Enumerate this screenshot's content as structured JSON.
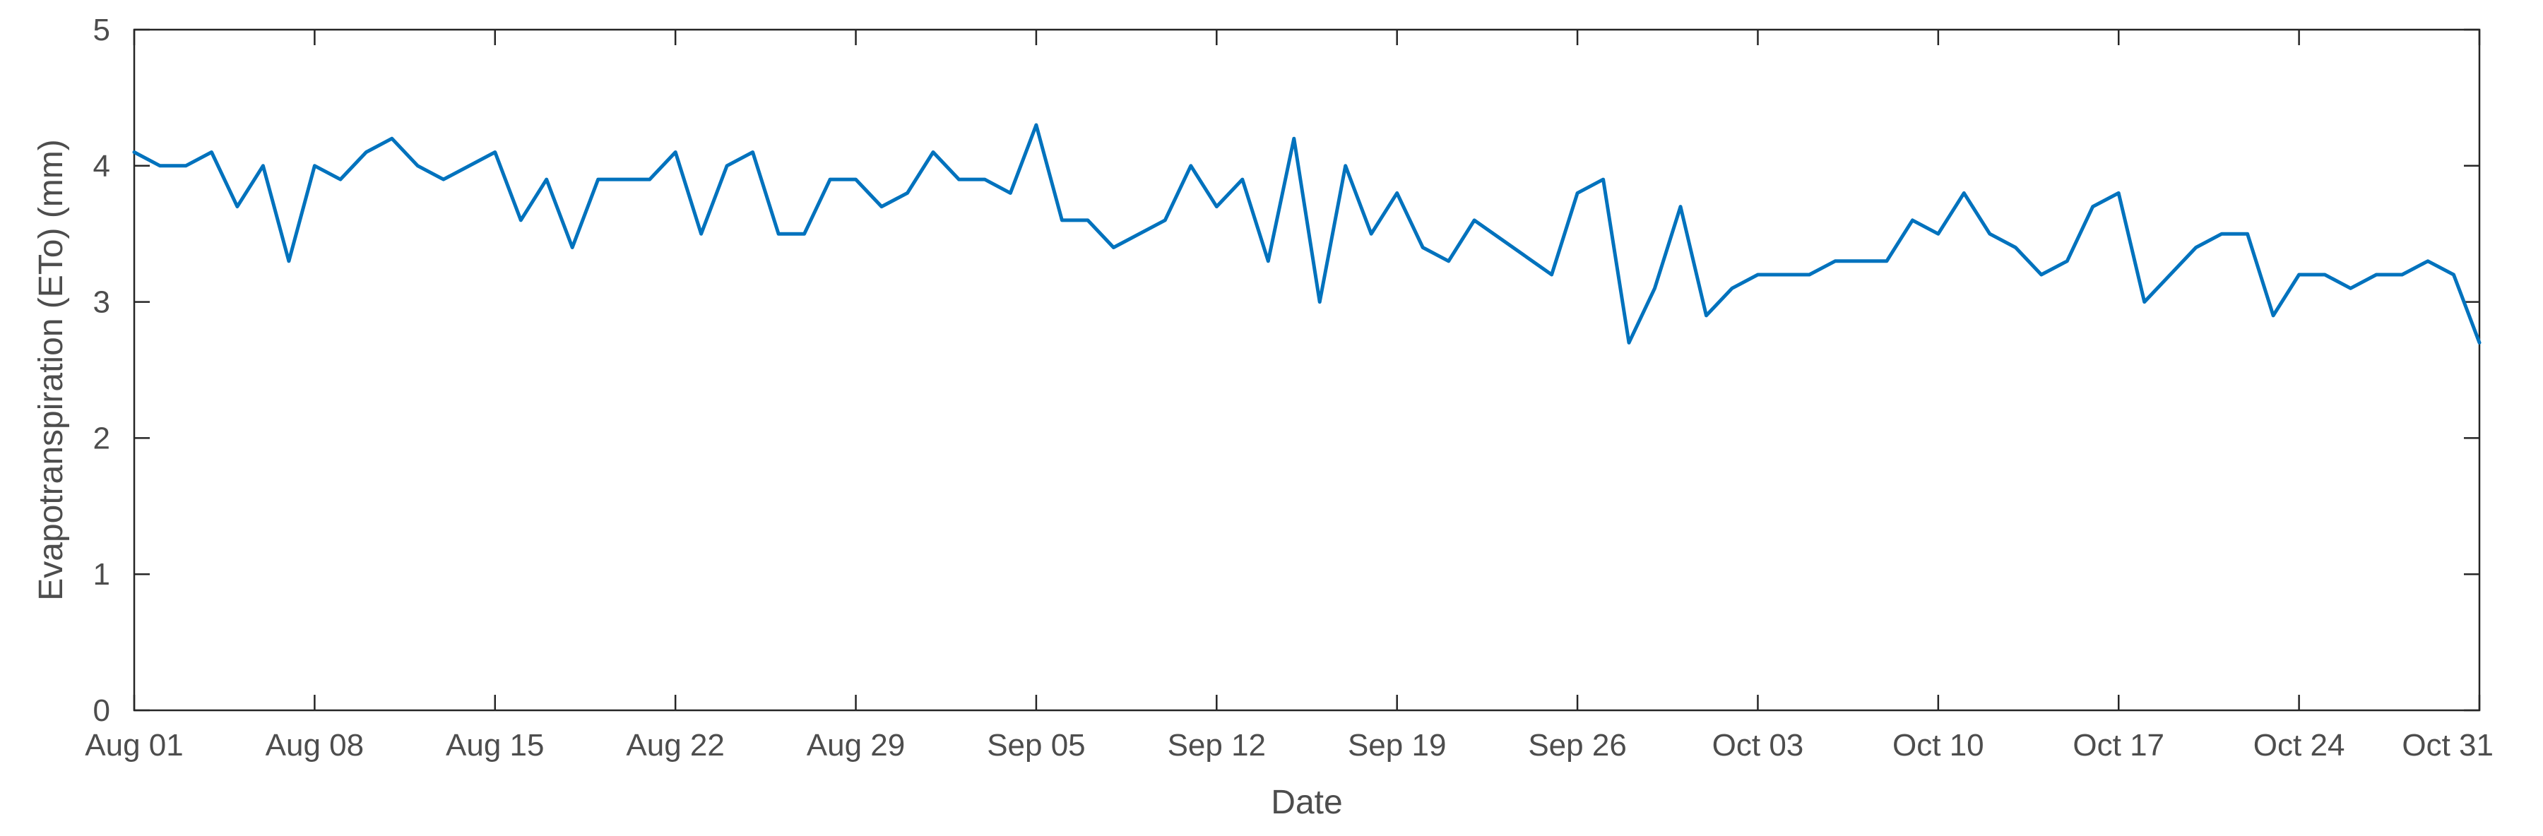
{
  "chart_data": {
    "type": "line",
    "title": "",
    "xlabel": "Date",
    "ylabel": "Evapotranspiration (ETo) (mm)",
    "xlim": [
      "2023-08-01",
      "2023-10-31"
    ],
    "ylim": [
      0,
      5
    ],
    "grid": false,
    "line_color": "#0072BD",
    "x_ticks": [
      {
        "date": "2023-08-01",
        "label": "Aug 01"
      },
      {
        "date": "2023-08-08",
        "label": "Aug 08"
      },
      {
        "date": "2023-08-15",
        "label": "Aug 15"
      },
      {
        "date": "2023-08-22",
        "label": "Aug 22"
      },
      {
        "date": "2023-08-29",
        "label": "Aug 29"
      },
      {
        "date": "2023-09-05",
        "label": "Sep 05"
      },
      {
        "date": "2023-09-12",
        "label": "Sep 12"
      },
      {
        "date": "2023-09-19",
        "label": "Sep 19"
      },
      {
        "date": "2023-09-26",
        "label": "Sep 26"
      },
      {
        "date": "2023-10-03",
        "label": "Oct 03"
      },
      {
        "date": "2023-10-10",
        "label": "Oct 10"
      },
      {
        "date": "2023-10-17",
        "label": "Oct 17"
      },
      {
        "date": "2023-10-24",
        "label": "Oct 24"
      },
      {
        "date": "2023-10-31",
        "label": "Oct 31"
      }
    ],
    "y_ticks": [
      0,
      1,
      2,
      3,
      4,
      5
    ],
    "x": [
      "2023-08-01",
      "2023-08-02",
      "2023-08-03",
      "2023-08-04",
      "2023-08-05",
      "2023-08-06",
      "2023-08-07",
      "2023-08-08",
      "2023-08-09",
      "2023-08-10",
      "2023-08-11",
      "2023-08-12",
      "2023-08-13",
      "2023-08-15",
      "2023-08-16",
      "2023-08-17",
      "2023-08-18",
      "2023-08-19",
      "2023-08-21",
      "2023-08-22",
      "2023-08-23",
      "2023-08-24",
      "2023-08-25",
      "2023-08-26",
      "2023-08-27",
      "2023-08-28",
      "2023-08-29",
      "2023-08-30",
      "2023-08-31",
      "2023-09-01",
      "2023-09-02",
      "2023-09-03",
      "2023-09-04",
      "2023-09-05",
      "2023-09-06",
      "2023-09-07",
      "2023-09-08",
      "2023-09-10",
      "2023-09-11",
      "2023-09-12",
      "2023-09-13",
      "2023-09-14",
      "2023-09-15",
      "2023-09-16",
      "2023-09-17",
      "2023-09-18",
      "2023-09-19",
      "2023-09-20",
      "2023-09-21",
      "2023-09-22",
      "2023-09-25",
      "2023-09-26",
      "2023-09-27",
      "2023-09-28",
      "2023-09-29",
      "2023-09-30",
      "2023-10-01",
      "2023-10-02",
      "2023-10-03",
      "2023-10-05",
      "2023-10-06",
      "2023-10-08",
      "2023-10-09",
      "2023-10-10",
      "2023-10-11",
      "2023-10-12",
      "2023-10-13",
      "2023-10-14",
      "2023-10-15",
      "2023-10-16",
      "2023-10-17",
      "2023-10-18",
      "2023-10-20",
      "2023-10-21",
      "2023-10-22",
      "2023-10-23",
      "2023-10-24",
      "2023-10-25",
      "2023-10-26",
      "2023-10-27",
      "2023-10-28",
      "2023-10-29",
      "2023-10-30",
      "2023-10-31"
    ],
    "series": [
      {
        "values": [
          4.1,
          4.0,
          4.0,
          4.1,
          3.7,
          4.0,
          3.3,
          4.0,
          3.9,
          4.1,
          4.2,
          4.0,
          3.9,
          4.1,
          3.6,
          3.9,
          3.4,
          3.9,
          3.9,
          4.1,
          3.5,
          4.0,
          4.1,
          3.5,
          3.5,
          3.9,
          3.9,
          3.7,
          3.8,
          4.1,
          3.9,
          3.9,
          3.8,
          4.3,
          3.6,
          3.6,
          3.4,
          3.6,
          4.0,
          3.7,
          3.9,
          3.3,
          4.2,
          3.0,
          4.0,
          3.5,
          3.8,
          3.4,
          3.3,
          3.6,
          3.2,
          3.8,
          3.9,
          2.7,
          3.1,
          3.7,
          2.9,
          3.1,
          3.2,
          3.2,
          3.3,
          3.3,
          3.6,
          3.5,
          3.8,
          3.5,
          3.4,
          3.2,
          3.3,
          3.7,
          3.8,
          3.0,
          3.4,
          3.5,
          3.5,
          2.9,
          3.2,
          3.2,
          3.1,
          3.2,
          3.2,
          3.3,
          3.2,
          2.7
        ]
      }
    ]
  }
}
